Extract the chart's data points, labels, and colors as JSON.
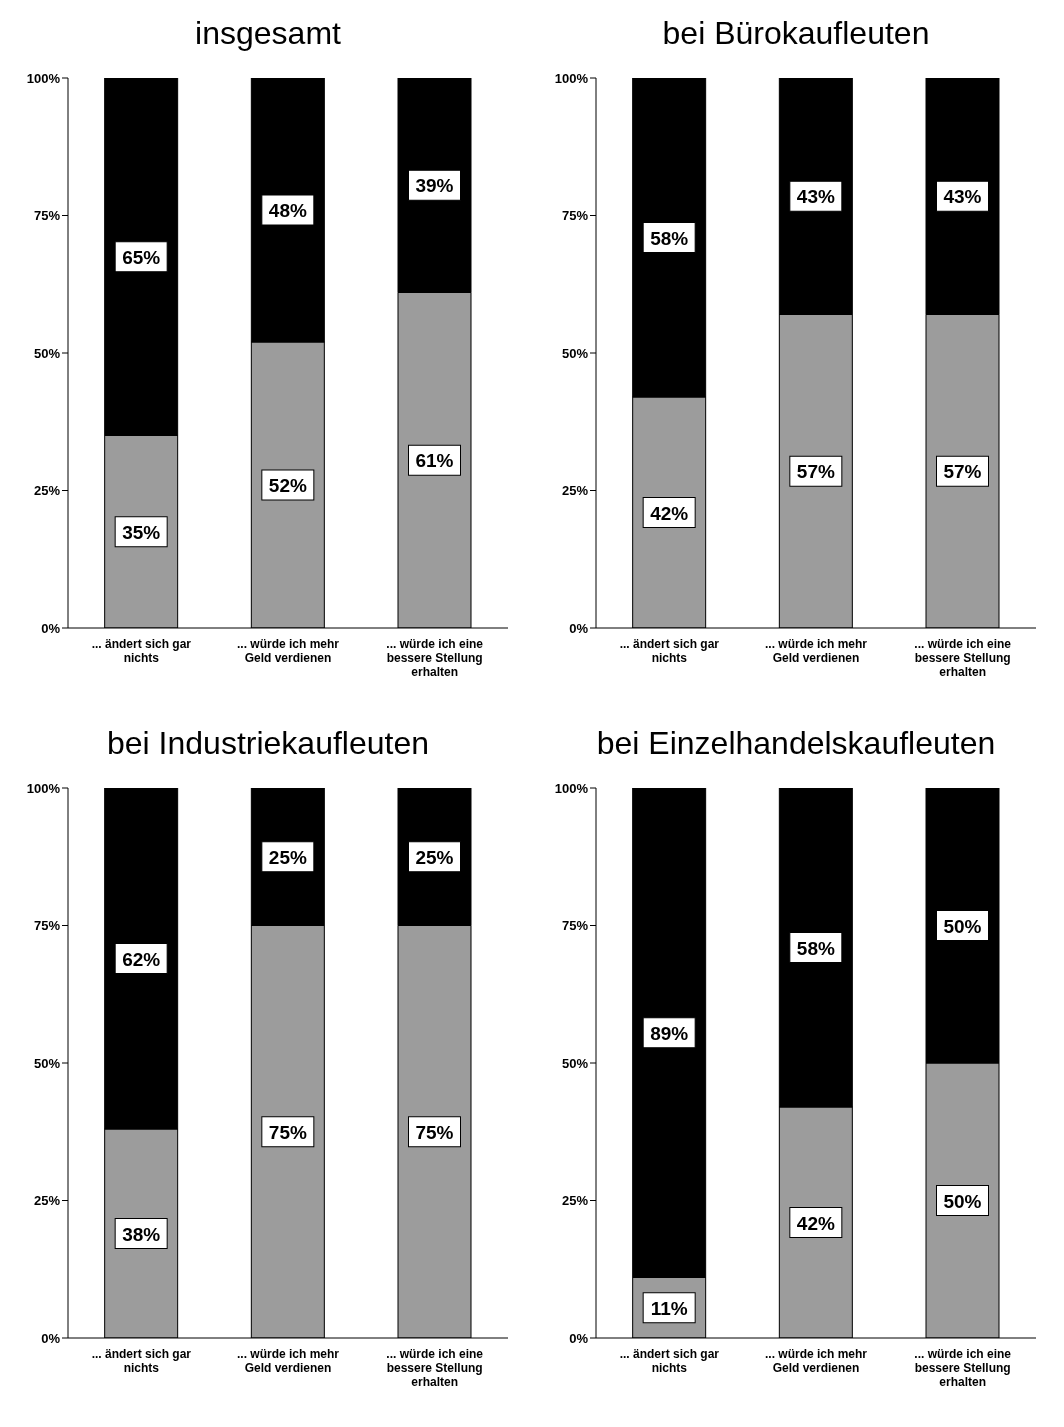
{
  "chart_data": [
    {
      "type": "bar",
      "title": "insgesamt",
      "stacked": true,
      "categories": [
        "... ändert sich gar nichts",
        "... würde ich mehr Geld verdienen",
        "... würde ich eine bessere Stellung erhalten"
      ],
      "ylim": [
        0,
        100
      ],
      "yticks": [
        {
          "value": 0,
          "label": "0%"
        },
        {
          "value": 25,
          "label": "25%"
        },
        {
          "value": 50,
          "label": "50%"
        },
        {
          "value": 75,
          "label": "75%"
        },
        {
          "value": 100,
          "label": "100%"
        }
      ],
      "series": [
        {
          "color": "#9c9c9c",
          "values": [
            35,
            52,
            61
          ],
          "value_labels": [
            "35%",
            "52%",
            "61%"
          ]
        },
        {
          "color": "#000000",
          "values": [
            65,
            48,
            39
          ],
          "value_labels": [
            "65%",
            "48%",
            "39%"
          ]
        }
      ]
    },
    {
      "type": "bar",
      "title": "bei Bürokaufleuten",
      "stacked": true,
      "categories": [
        "... ändert sich gar nichts",
        "... würde ich mehr Geld verdienen",
        "... würde ich eine bessere Stellung erhalten"
      ],
      "ylim": [
        0,
        100
      ],
      "yticks": [
        {
          "value": 0,
          "label": "0%"
        },
        {
          "value": 25,
          "label": "25%"
        },
        {
          "value": 50,
          "label": "50%"
        },
        {
          "value": 75,
          "label": "75%"
        },
        {
          "value": 100,
          "label": "100%"
        }
      ],
      "series": [
        {
          "color": "#9c9c9c",
          "values": [
            42,
            57,
            57
          ],
          "value_labels": [
            "42%",
            "57%",
            "57%"
          ]
        },
        {
          "color": "#000000",
          "values": [
            58,
            43,
            43
          ],
          "value_labels": [
            "58%",
            "43%",
            "43%"
          ]
        }
      ]
    },
    {
      "type": "bar",
      "title": "bei Industriekaufleuten",
      "stacked": true,
      "categories": [
        "... ändert sich gar nichts",
        "... würde ich mehr Geld verdienen",
        "... würde ich eine bessere Stellung erhalten"
      ],
      "ylim": [
        0,
        100
      ],
      "yticks": [
        {
          "value": 0,
          "label": "0%"
        },
        {
          "value": 25,
          "label": "25%"
        },
        {
          "value": 50,
          "label": "50%"
        },
        {
          "value": 75,
          "label": "75%"
        },
        {
          "value": 100,
          "label": "100%"
        }
      ],
      "series": [
        {
          "color": "#9c9c9c",
          "values": [
            38,
            75,
            75
          ],
          "value_labels": [
            "38%",
            "75%",
            "75%"
          ]
        },
        {
          "color": "#000000",
          "values": [
            62,
            25,
            25
          ],
          "value_labels": [
            "62%",
            "25%",
            "25%"
          ]
        }
      ]
    },
    {
      "type": "bar",
      "title": "bei Einzelhandelskaufleuten",
      "stacked": true,
      "categories": [
        "... ändert sich gar nichts",
        "... würde ich mehr Geld verdienen",
        "... würde ich eine bessere Stellung erhalten"
      ],
      "ylim": [
        0,
        100
      ],
      "yticks": [
        {
          "value": 0,
          "label": "0%"
        },
        {
          "value": 25,
          "label": "25%"
        },
        {
          "value": 50,
          "label": "50%"
        },
        {
          "value": 75,
          "label": "75%"
        },
        {
          "value": 100,
          "label": "100%"
        }
      ],
      "series": [
        {
          "color": "#9c9c9c",
          "values": [
            11,
            42,
            50
          ],
          "value_labels": [
            "11%",
            "42%",
            "50%"
          ]
        },
        {
          "color": "#000000",
          "values": [
            89,
            58,
            50
          ],
          "value_labels": [
            "89%",
            "58%",
            "50%"
          ]
        }
      ]
    }
  ]
}
